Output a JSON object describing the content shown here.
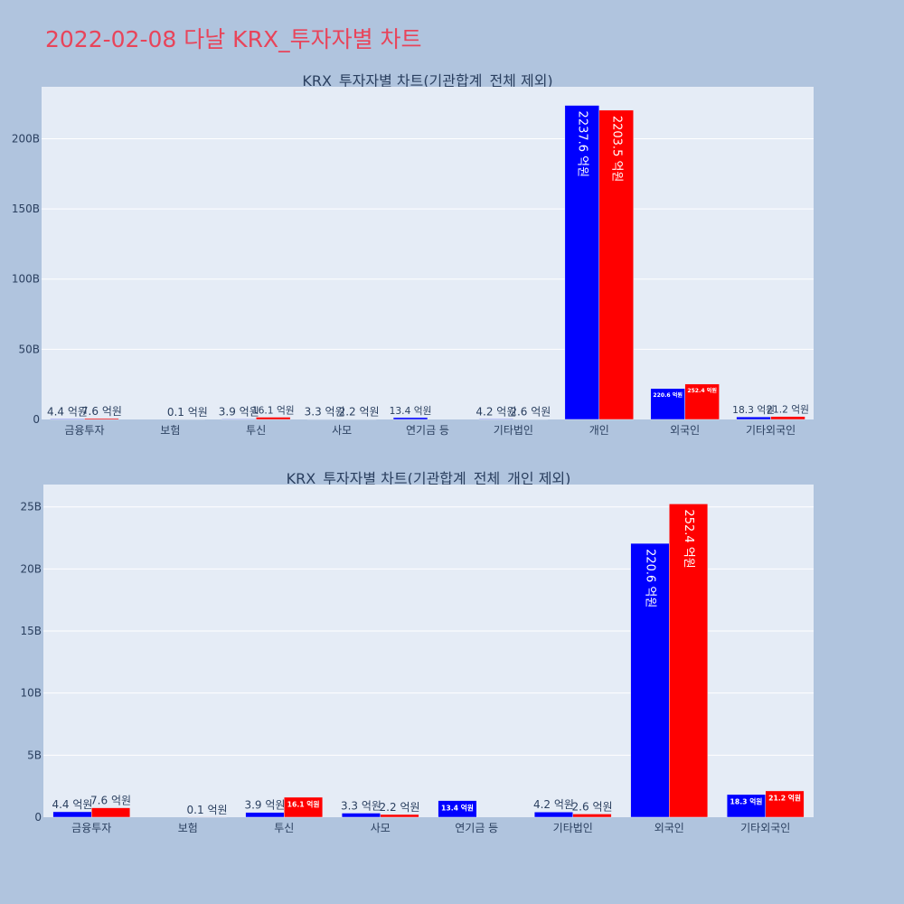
{
  "page": {
    "title": "2022-02-08 다날 KRX_투자자별 차트"
  },
  "colors": {
    "buy": "#0000ff",
    "sell": "#ff0000",
    "plot_bg": "#e5ecf6",
    "paper_bg": "#b0c4de",
    "grid": "#ffffff",
    "text": "#2a3f5f"
  },
  "chart_data": [
    {
      "type": "bar",
      "title": "KRX_투자자별 차트(기관합계_전체 제외)",
      "categories": [
        "금융투자",
        "보험",
        "투신",
        "사모",
        "연기금 등",
        "기타법인",
        "개인",
        "외국인",
        "기타외국인"
      ],
      "series": [
        {
          "color": "#0000ff",
          "values": [
            0.44,
            0,
            0.39,
            0.33,
            1.34,
            0.42,
            223.76,
            22.06,
            1.83
          ],
          "labels": [
            "4.4 억원",
            "",
            "3.9 억원",
            "3.3 억원",
            "13.4 억원",
            "4.2 억원",
            "2237.6 억원",
            "220.6 억원",
            "18.3 억원"
          ]
        },
        {
          "color": "#ff0000",
          "values": [
            0.76,
            0.01,
            1.61,
            0.22,
            0,
            0.26,
            220.35,
            25.24,
            2.12
          ],
          "labels": [
            "7.6 억원",
            "0.1 억원",
            "16.1 억원",
            "2.2 억원",
            "",
            "2.6 억원",
            "2203.5 억원",
            "252.4 억원",
            "21.2 억원"
          ]
        }
      ],
      "ylim": [
        0,
        237
      ],
      "yticks": [
        0,
        50,
        100,
        150,
        200
      ],
      "ytick_labels": [
        "0",
        "50B",
        "100B",
        "150B",
        "200B"
      ],
      "grid": true
    },
    {
      "type": "bar",
      "title": "KRX_투자자별 차트(기관합계_전체_개인 제외)",
      "categories": [
        "금융투자",
        "보험",
        "투신",
        "사모",
        "연기금 등",
        "기타법인",
        "외국인",
        "기타외국인"
      ],
      "series": [
        {
          "color": "#0000ff",
          "values": [
            0.44,
            0,
            0.39,
            0.33,
            1.34,
            0.42,
            22.06,
            1.83
          ],
          "labels": [
            "4.4 억원",
            "",
            "3.9 억원",
            "3.3 억원",
            "13.4 억원",
            "4.2 억원",
            "220.6 억원",
            "18.3 억원"
          ]
        },
        {
          "color": "#ff0000",
          "values": [
            0.76,
            0.01,
            1.61,
            0.22,
            0,
            0.26,
            25.24,
            2.12
          ],
          "labels": [
            "7.6 억원",
            "0.1 억원",
            "16.1 억원",
            "2.2 억원",
            "",
            "2.6 억원",
            "252.4 억원",
            "21.2 억원"
          ]
        }
      ],
      "ylim": [
        0,
        26.8
      ],
      "yticks": [
        0,
        5,
        10,
        15,
        20,
        25
      ],
      "ytick_labels": [
        "0",
        "5B",
        "10B",
        "15B",
        "20B",
        "25B"
      ],
      "grid": true
    }
  ]
}
